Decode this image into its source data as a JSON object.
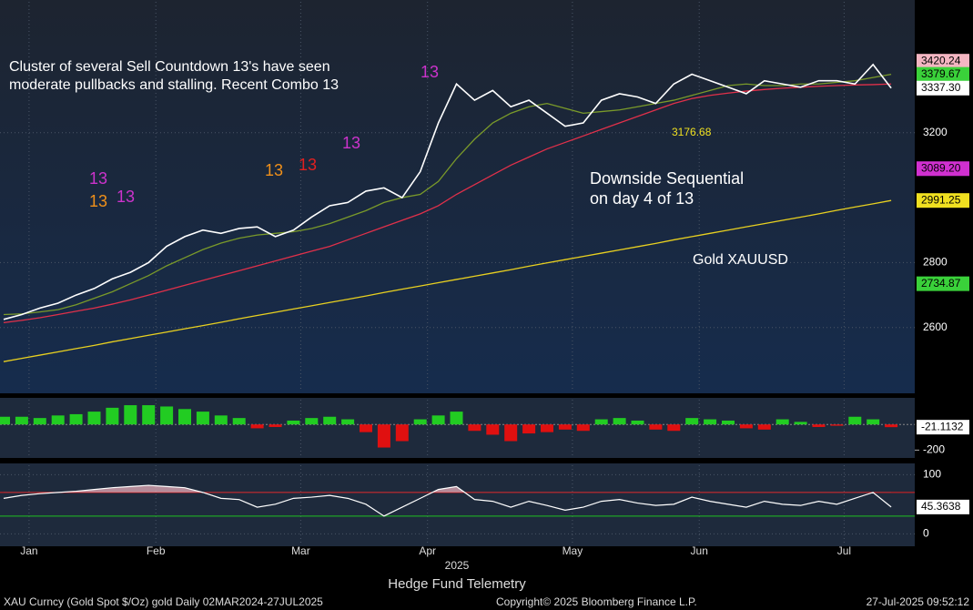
{
  "chart_data": [
    {
      "type": "line",
      "title": "Gold XAUUSD",
      "subtitle": "2025",
      "xticks": [
        {
          "value": 1,
          "label": "Jan"
        },
        {
          "value": 8,
          "label": "Feb"
        },
        {
          "value": 16,
          "label": "Mar"
        },
        {
          "value": 23,
          "label": "Apr"
        },
        {
          "value": 31,
          "label": "May"
        },
        {
          "value": 38,
          "label": "Jun"
        },
        {
          "value": 46,
          "label": "Jul"
        }
      ],
      "ylim": [
        2403,
        3603
      ],
      "yticks": [
        2600,
        2800,
        3200
      ],
      "grid": true,
      "series": [
        {
          "name": "Price",
          "color": "#ffffff",
          "values": [
            2625,
            2640,
            2660,
            2675,
            2700,
            2720,
            2750,
            2770,
            2800,
            2850,
            2880,
            2900,
            2890,
            2905,
            2910,
            2880,
            2900,
            2940,
            2975,
            2985,
            3020,
            3030,
            3000,
            3080,
            3230,
            3350,
            3300,
            3330,
            3280,
            3300,
            3260,
            3220,
            3230,
            3300,
            3320,
            3310,
            3290,
            3350,
            3380,
            3360,
            3340,
            3320,
            3360,
            3350,
            3340,
            3360,
            3360,
            3350,
            3410,
            3337.3
          ]
        },
        {
          "name": "MA fast",
          "color": "#7a9a2a",
          "values": [
            2640,
            2642,
            2648,
            2655,
            2670,
            2690,
            2710,
            2735,
            2760,
            2790,
            2815,
            2840,
            2860,
            2875,
            2885,
            2890,
            2895,
            2905,
            2920,
            2940,
            2960,
            2985,
            3000,
            3010,
            3050,
            3120,
            3180,
            3230,
            3260,
            3280,
            3290,
            3275,
            3260,
            3265,
            3270,
            3280,
            3290,
            3300,
            3315,
            3330,
            3345,
            3350,
            3345,
            3345,
            3350,
            3350,
            3355,
            3360,
            3370,
            3379.67
          ]
        },
        {
          "name": "MA mid",
          "color": "#e0304a",
          "values": [
            2615,
            2622,
            2630,
            2640,
            2650,
            2660,
            2672,
            2685,
            2700,
            2715,
            2730,
            2745,
            2760,
            2775,
            2790,
            2805,
            2820,
            2835,
            2850,
            2870,
            2890,
            2910,
            2930,
            2950,
            2975,
            3010,
            3040,
            3070,
            3100,
            3125,
            3150,
            3170,
            3190,
            3210,
            3230,
            3250,
            3270,
            3290,
            3305,
            3315,
            3322,
            3328,
            3333,
            3337,
            3340,
            3343,
            3345,
            3347,
            3348,
            3350
          ]
        },
        {
          "name": "MA slow",
          "color": "#e8d020",
          "values": [
            2495,
            2505,
            2515,
            2525,
            2535,
            2545,
            2556,
            2566,
            2576,
            2586,
            2596,
            2606,
            2616,
            2627,
            2637,
            2647,
            2657,
            2667,
            2677,
            2687,
            2697,
            2708,
            2718,
            2728,
            2738,
            2748,
            2758,
            2768,
            2778,
            2789,
            2799,
            2809,
            2819,
            2829,
            2839,
            2849,
            2859,
            2870,
            2880,
            2890,
            2900,
            2910,
            2920,
            2930,
            2940,
            2950,
            2961,
            2971,
            2981,
            2991.25
          ]
        }
      ],
      "right_labels": [
        {
          "value": 3420.24,
          "label": "3420.24",
          "color": "#f4b6c2",
          "text_color": "#000000"
        },
        {
          "value": 3379.67,
          "label": "3379.67",
          "color": "#3ad13a",
          "text_color": "#000000"
        },
        {
          "value": 3337.3,
          "label": "3337.30",
          "color": "#ffffff",
          "text_color": "#000000"
        },
        {
          "value": 3089.2,
          "label": "3089.20",
          "color": "#d030d0",
          "text_color": "#000000"
        },
        {
          "value": 2991.25,
          "label": "2991.25",
          "color": "#f0e020",
          "text_color": "#000000"
        },
        {
          "value": 2734.87,
          "label": "2734.87",
          "color": "#3ad13a",
          "text_color": "#000000"
        }
      ]
    },
    {
      "type": "bar",
      "ylim": [
        -247,
        193
      ],
      "yticks": [
        -200
      ],
      "colors": {
        "positive": "#22cc22",
        "negative": "#e01010"
      },
      "values": [
        60,
        60,
        50,
        70,
        80,
        100,
        130,
        150,
        150,
        140,
        120,
        100,
        70,
        50,
        -30,
        -20,
        30,
        50,
        60,
        40,
        -60,
        -180,
        -130,
        40,
        70,
        100,
        -50,
        -80,
        -130,
        -70,
        -60,
        -40,
        -50,
        40,
        50,
        30,
        -40,
        -50,
        50,
        40,
        30,
        -30,
        -40,
        40,
        20,
        -20,
        -10,
        60,
        40,
        -21.1132
      ],
      "last_label": {
        "value": -21.1132,
        "label": "-21.1132"
      }
    },
    {
      "type": "line",
      "ylim": [
        -18,
        116
      ],
      "yticks": [
        0,
        100
      ],
      "levels": [
        {
          "value": 70,
          "color": "#e02020"
        },
        {
          "value": 30,
          "color": "#20c020"
        }
      ],
      "color": "#ffffff",
      "fill": "#f4b6c2",
      "values": [
        60,
        65,
        68,
        70,
        72,
        75,
        78,
        80,
        82,
        80,
        78,
        70,
        60,
        58,
        45,
        50,
        60,
        62,
        65,
        60,
        50,
        30,
        45,
        60,
        75,
        80,
        58,
        55,
        45,
        55,
        48,
        40,
        45,
        55,
        58,
        52,
        48,
        50,
        62,
        55,
        50,
        45,
        55,
        50,
        48,
        55,
        50,
        60,
        70,
        45.3638
      ],
      "last_label": {
        "value": 45.3638,
        "label": "45.3638"
      }
    }
  ],
  "annotations": {
    "cluster": [
      "Cluster of several Sell Countdown 13's have seen",
      "moderate pullbacks and stalling. Recent Combo 13"
    ],
    "downside": [
      "Downside Sequential",
      "on day 4 of 13"
    ],
    "level": "3176.68",
    "td_labels": [
      {
        "text": "13",
        "color": "#cc33cc"
      },
      {
        "text": "13",
        "color": "#cc33cc"
      },
      {
        "text": "13",
        "color": "#cc33cc"
      },
      {
        "text": "13",
        "color": "#f0901a"
      },
      {
        "text": "13",
        "color": "#f0901a"
      },
      {
        "text": "13",
        "color": "#e02020"
      },
      {
        "text": "13",
        "color": "#cc33cc"
      }
    ]
  },
  "footer": {
    "source": "Hedge Fund Telemetry",
    "ticker": "XAU Curncy (Gold Spot  $/Oz) gold  Daily 02MAR2024-27JUL2025",
    "copyright": "Copyright© 2025 Bloomberg Finance L.P.",
    "timestamp": "27-Jul-2025 09:52:12"
  }
}
